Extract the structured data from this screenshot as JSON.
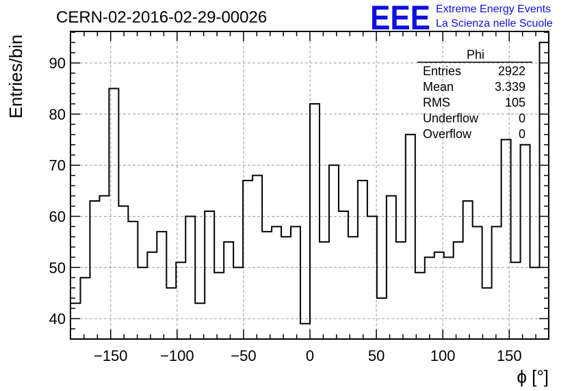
{
  "logo": {
    "mark": "EEE",
    "line1": "Extreme Energy Events",
    "line2": "La Scienza nelle Scuole",
    "color": "#1010e0"
  },
  "stats": {
    "name": "Phi",
    "rows": [
      {
        "label": "Entries",
        "value": "2922"
      },
      {
        "label": "Mean",
        "value": "3.339"
      },
      {
        "label": "RMS",
        "value": "105"
      },
      {
        "label": "Underflow",
        "value": "0"
      },
      {
        "label": "Overflow",
        "value": "0"
      }
    ]
  },
  "chart_data": {
    "type": "bar",
    "style": "step-histogram",
    "title": "CERN-02-2016-02-29-00026",
    "xlabel": "ϕ [°]",
    "ylabel": "Entries/bin",
    "xlim": [
      -180,
      180
    ],
    "ylim": [
      36,
      97
    ],
    "bin_width": 7.2,
    "grid": true,
    "xticks": [
      -150,
      -100,
      -50,
      0,
      50,
      100,
      150
    ],
    "xtick_labels": [
      "−150",
      "−100",
      "−50",
      "0",
      "50",
      "100",
      "150"
    ],
    "yticks": [
      40,
      50,
      60,
      70,
      80,
      90
    ],
    "ytick_labels": [
      "40",
      "50",
      "60",
      "70",
      "80",
      "90"
    ],
    "bin_low_edges": [
      -180,
      -172.8,
      -165.6,
      -158.4,
      -151.2,
      -144,
      -136.8,
      -129.6,
      -122.4,
      -115.2,
      -108,
      -100.8,
      -93.6,
      -86.4,
      -79.2,
      -72,
      -64.8,
      -57.6,
      -50.4,
      -43.2,
      -36,
      -28.8,
      -21.6,
      -14.4,
      -7.2,
      0,
      7.2,
      14.4,
      21.6,
      28.8,
      36,
      43.2,
      50.4,
      57.6,
      64.8,
      72,
      79.2,
      86.4,
      93.6,
      100.8,
      108,
      115.2,
      122.4,
      129.6,
      136.8,
      144,
      151.2,
      158.4,
      165.6,
      172.8
    ],
    "values": [
      43,
      48,
      63,
      64,
      85,
      62,
      59,
      50,
      53,
      57,
      46,
      51,
      60,
      43,
      61,
      49,
      55,
      50,
      67,
      68,
      57,
      58,
      56,
      58,
      39,
      82,
      55,
      70,
      61,
      56,
      67,
      60,
      44,
      64,
      55,
      76,
      49,
      52,
      53,
      52,
      55,
      63,
      58,
      46,
      58,
      75,
      51,
      74,
      50,
      94
    ],
    "line_color": "#000000"
  }
}
